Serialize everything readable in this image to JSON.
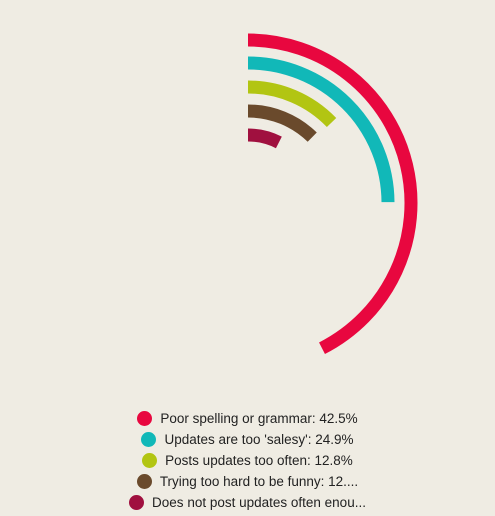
{
  "chart_data": {
    "type": "radial-bar",
    "max_value": 50,
    "series": [
      {
        "name": "Poor spelling or grammar: 42.5%",
        "value": 42.5,
        "color": "#e8073f"
      },
      {
        "name": "Updates are too 'salesy': 24.9%",
        "value": 24.9,
        "color": "#11b8b8"
      },
      {
        "name": "Posts updates too often: 12.8%",
        "value": 12.8,
        "color": "#b2c512"
      },
      {
        "name": "Trying too hard to be funny: 12....",
        "value": 12.3,
        "color": "#6a4a2c"
      },
      {
        "name": "Does not post updates often enou...",
        "value": 7.5,
        "color": "#a0103f"
      }
    ],
    "legend_position": "bottom"
  }
}
